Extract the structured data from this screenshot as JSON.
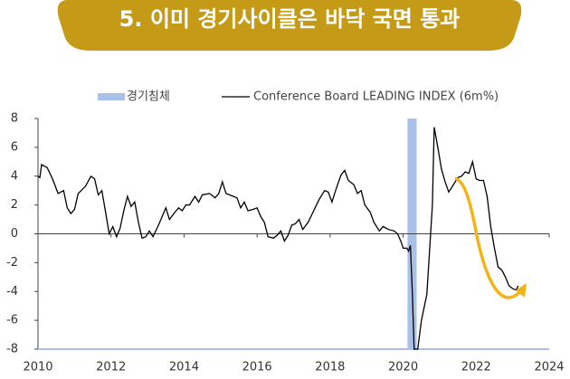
{
  "chart_data": {
    "type": "line",
    "title": "5. 이미 경기사이클은 바닥 국면 통과",
    "xlim": [
      2010,
      2024
    ],
    "xticks": [
      2010,
      2012,
      2014,
      2016,
      2018,
      2020,
      2022,
      2024
    ],
    "ylim": [
      -8,
      8
    ],
    "yticks": [
      -8,
      -6,
      -4,
      -2,
      0,
      2,
      4,
      6,
      8
    ],
    "series": [
      {
        "name": "경기침체",
        "type": "band",
        "color": "#a9c0e8",
        "x": [
          2020.12,
          2020.37
        ]
      },
      {
        "name": "Conference Board LEADING INDEX (6m%)",
        "color": "#000000",
        "x": [
          2010.0,
          2010.05,
          2010.1,
          2010.25,
          2010.4,
          2010.55,
          2010.7,
          2010.8,
          2010.9,
          2011.0,
          2011.1,
          2011.3,
          2011.45,
          2011.55,
          2011.65,
          2011.75,
          2011.85,
          2011.95,
          2012.05,
          2012.15,
          2012.25,
          2012.35,
          2012.45,
          2012.55,
          2012.65,
          2012.75,
          2012.85,
          2012.95,
          2013.05,
          2013.15,
          2013.3,
          2013.5,
          2013.6,
          2013.75,
          2013.85,
          2013.95,
          2014.05,
          2014.15,
          2014.3,
          2014.4,
          2014.5,
          2014.7,
          2014.85,
          2014.95,
          2015.05,
          2015.15,
          2015.35,
          2015.45,
          2015.55,
          2015.65,
          2015.75,
          2015.9,
          2016.0,
          2016.1,
          2016.2,
          2016.3,
          2016.45,
          2016.55,
          2016.65,
          2016.75,
          2016.85,
          2016.95,
          2017.05,
          2017.15,
          2017.25,
          2017.4,
          2017.55,
          2017.7,
          2017.85,
          2017.95,
          2018.05,
          2018.15,
          2018.3,
          2018.4,
          2018.5,
          2018.65,
          2018.75,
          2018.85,
          2018.95,
          2019.1,
          2019.2,
          2019.35,
          2019.45,
          2019.6,
          2019.75,
          2019.85,
          2019.95,
          2020.0,
          2020.1,
          2020.15,
          2020.2,
          2020.25,
          2020.3,
          2020.4,
          2020.5,
          2020.65,
          2020.8,
          2020.85,
          2020.95,
          2021.05,
          2021.15,
          2021.25,
          2021.35,
          2021.5,
          2021.6,
          2021.7,
          2021.8,
          2021.9,
          2022.0,
          2022.1,
          2022.2,
          2022.3,
          2022.4,
          2022.5,
          2022.6,
          2022.7,
          2022.8,
          2022.9,
          2023.0,
          2023.1,
          2023.15
        ],
        "values": [
          4.0,
          3.9,
          4.8,
          4.6,
          3.8,
          2.8,
          3.0,
          1.8,
          1.4,
          1.7,
          2.8,
          3.3,
          4.0,
          3.8,
          2.7,
          3.0,
          1.5,
          0.0,
          0.5,
          -0.2,
          0.4,
          1.6,
          2.6,
          1.9,
          2.2,
          0.8,
          -0.3,
          -0.2,
          0.2,
          -0.2,
          0.6,
          1.8,
          1.0,
          1.5,
          1.8,
          1.6,
          2.0,
          2.0,
          2.6,
          2.2,
          2.7,
          2.8,
          2.5,
          2.8,
          3.6,
          2.8,
          2.6,
          2.5,
          1.8,
          2.2,
          1.6,
          1.7,
          1.8,
          1.2,
          0.8,
          -0.2,
          -0.3,
          -0.1,
          0.2,
          -0.5,
          -0.1,
          0.6,
          0.7,
          1.0,
          0.3,
          0.8,
          1.6,
          2.4,
          3.0,
          2.9,
          2.2,
          3.0,
          4.1,
          4.4,
          3.7,
          3.4,
          2.8,
          3.0,
          2.0,
          1.5,
          0.8,
          0.2,
          0.5,
          0.3,
          0.2,
          0.0,
          -0.6,
          -1.0,
          -1.0,
          -1.2,
          -0.8,
          -4.0,
          -8.0,
          -8.0,
          -6.0,
          -4.2,
          2.0,
          7.4,
          6.0,
          4.5,
          3.6,
          2.9,
          3.3,
          3.9,
          4.0,
          4.3,
          4.2,
          5.0,
          3.8,
          3.7,
          3.7,
          2.6,
          0.5,
          -1.0,
          -2.3,
          -2.5,
          -3.0,
          -3.6,
          -3.8,
          -3.9,
          -3.6
        ]
      }
    ]
  }
}
